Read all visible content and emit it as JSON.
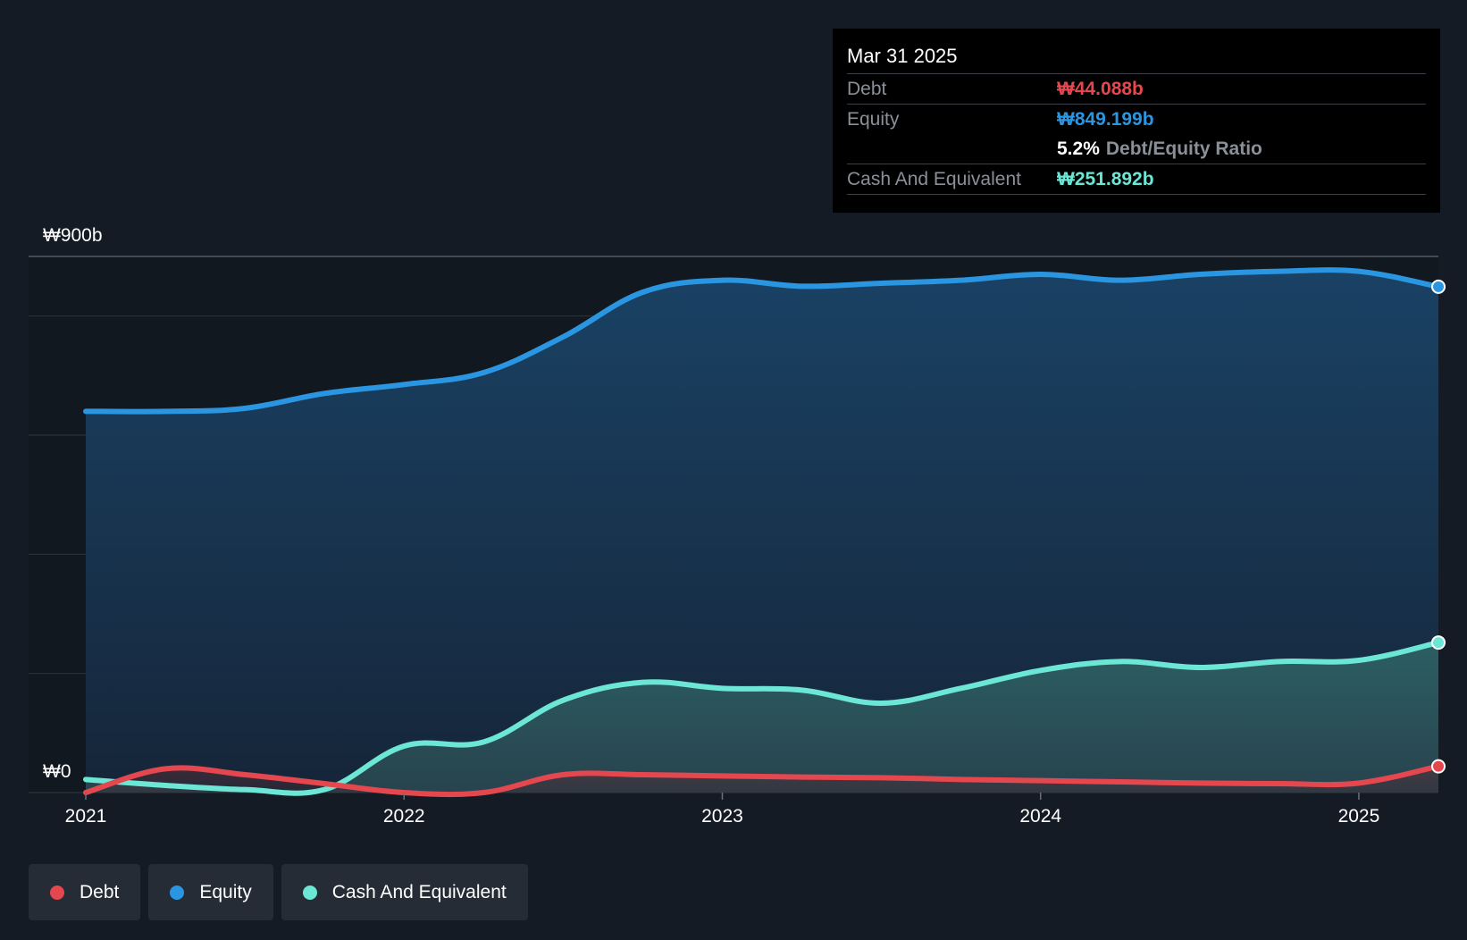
{
  "chart_data": {
    "type": "area",
    "x": [
      2021.0,
      2021.25,
      2021.5,
      2021.75,
      2022.0,
      2022.25,
      2022.5,
      2022.75,
      2023.0,
      2023.25,
      2023.5,
      2023.75,
      2024.0,
      2024.25,
      2024.5,
      2024.75,
      2025.0,
      2025.25
    ],
    "series": [
      {
        "name": "Debt",
        "color": "#e5474f",
        "values": [
          0,
          40,
          30,
          15,
          0,
          0,
          30,
          30,
          28,
          26,
          25,
          22,
          20,
          18,
          16,
          15,
          16,
          44.088
        ]
      },
      {
        "name": "Equity",
        "color": "#2a96e2",
        "values": [
          640,
          640,
          645,
          670,
          685,
          705,
          765,
          840,
          860,
          850,
          855,
          860,
          870,
          860,
          870,
          875,
          875,
          849.199
        ]
      },
      {
        "name": "Cash And Equivalent",
        "color": "#6ce6d5",
        "values": [
          22,
          12,
          5,
          5,
          78,
          85,
          155,
          185,
          175,
          172,
          150,
          175,
          205,
          220,
          210,
          220,
          222,
          251.892
        ]
      }
    ],
    "y_axis": {
      "top_label": "₩900b",
      "bottom_label": "₩0",
      "ylim": [
        0,
        900
      ]
    },
    "x_ticks": [
      "2021",
      "2022",
      "2023",
      "2024",
      "2025"
    ],
    "x_tick_values": [
      2021,
      2022,
      2023,
      2024,
      2025
    ]
  },
  "tooltip": {
    "date": "Mar 31 2025",
    "debt_label": "Debt",
    "debt_value": "₩44.088b",
    "equity_label": "Equity",
    "equity_value": "₩849.199b",
    "ratio_value": "5.2%",
    "ratio_label": "Debt/Equity Ratio",
    "cash_label": "Cash And Equivalent",
    "cash_value": "₩251.892b"
  },
  "legend": [
    {
      "label": "Debt",
      "color": "#e5474f"
    },
    {
      "label": "Equity",
      "color": "#2a96e2"
    },
    {
      "label": "Cash And Equivalent",
      "color": "#6ce6d5"
    }
  ]
}
